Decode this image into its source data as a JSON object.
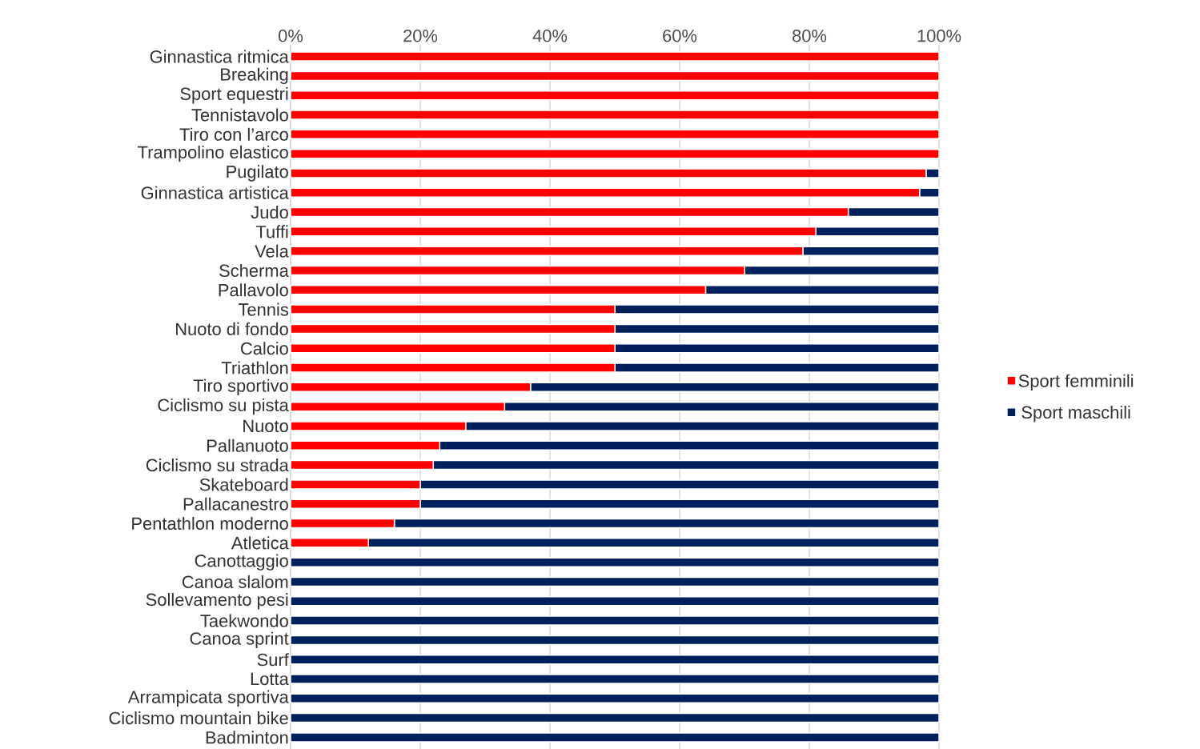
{
  "chart_data": {
    "type": "bar",
    "orientation": "horizontal",
    "stacked": true,
    "categories": [
      "Ginnastica ritmica",
      "Breaking",
      "Sport equestri",
      "Tennistavolo",
      "Tiro con l’arco",
      "Trampolino elastico",
      "Pugilato",
      "Ginnastica artistica",
      "Judo",
      "Tuffi",
      "Vela",
      "Scherma",
      "Pallavolo",
      "Tennis",
      "Nuoto di fondo",
      "Calcio",
      "Triathlon",
      "Tiro sportivo",
      "Ciclismo su pista",
      "Nuoto",
      "Pallanuoto",
      "Ciclismo su strada",
      "Skateboard",
      "Pallacanestro",
      "Pentathlon moderno",
      "Atletica",
      "Canottaggio",
      "Canoa slalom",
      "Sollevamento pesi",
      "Taekwondo",
      "Canoa sprint",
      "Surf",
      "Lotta",
      "Arrampicata sportiva",
      "Ciclismo mountain bike",
      "Badminton"
    ],
    "series": [
      {
        "name": "Sport femminili",
        "color": "#ff0000",
        "values": [
          100,
          100,
          100,
          100,
          100,
          100,
          98,
          97,
          86,
          81,
          79,
          70,
          64,
          50,
          50,
          50,
          50,
          37,
          33,
          27,
          23,
          22,
          20,
          20,
          16,
          12,
          0,
          0,
          0,
          0,
          0,
          0,
          0,
          0,
          0,
          0
        ]
      },
      {
        "name": "Sport maschili",
        "color": "#00205b",
        "values": [
          0,
          0,
          0,
          0,
          0,
          0,
          2,
          3,
          14,
          19,
          21,
          30,
          36,
          50,
          50,
          50,
          50,
          63,
          67,
          73,
          77,
          78,
          80,
          80,
          84,
          88,
          100,
          100,
          100,
          100,
          100,
          100,
          100,
          100,
          100,
          100
        ]
      }
    ],
    "xlim": [
      0,
      100
    ],
    "xticks": [
      {
        "value": 0,
        "label": "0%"
      },
      {
        "value": 20,
        "label": "20%"
      },
      {
        "value": 40,
        "label": "40%"
      },
      {
        "value": 60,
        "label": "60%"
      },
      {
        "value": 80,
        "label": "80%"
      },
      {
        "value": 100,
        "label": "100%"
      }
    ],
    "grid": "x",
    "legend": "right"
  }
}
